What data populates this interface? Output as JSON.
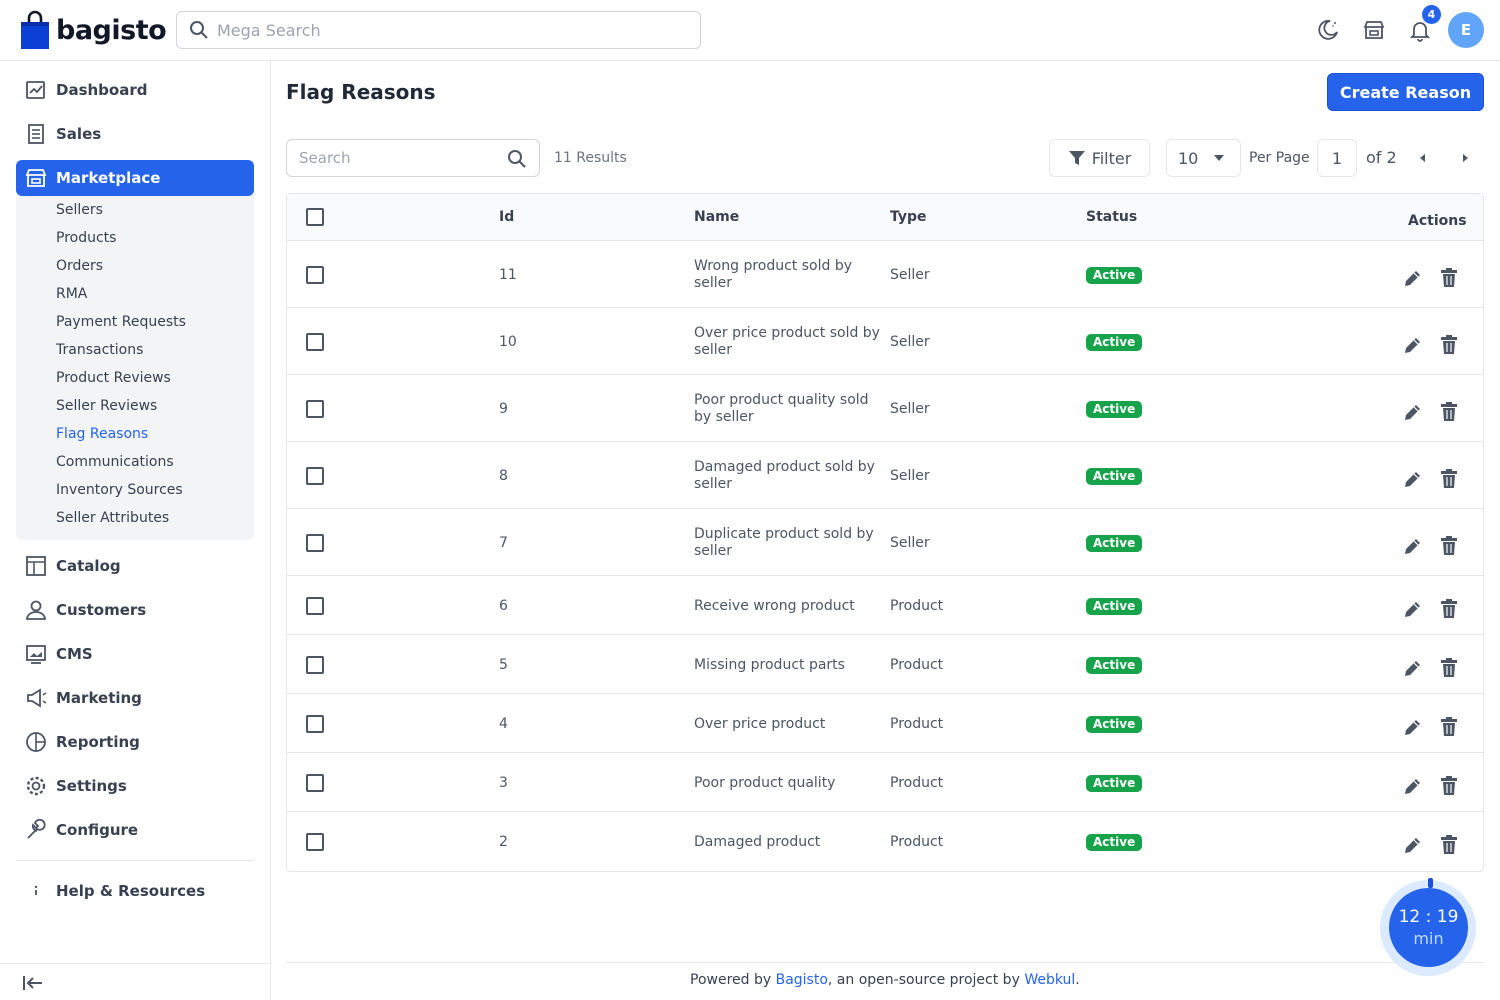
{
  "header": {
    "logo_text": "bagisto",
    "search_placeholder": "Mega Search",
    "notification_count": "4",
    "avatar_initial": "E"
  },
  "sidebar": {
    "items": [
      {
        "label": "Dashboard",
        "icon": "dashboard-icon"
      },
      {
        "label": "Sales",
        "icon": "sales-icon"
      },
      {
        "label": "Marketplace",
        "icon": "store-icon",
        "active": true
      },
      {
        "label": "Catalog",
        "icon": "catalog-icon"
      },
      {
        "label": "Customers",
        "icon": "customer-icon"
      },
      {
        "label": "CMS",
        "icon": "cms-icon"
      },
      {
        "label": "Marketing",
        "icon": "megaphone-icon"
      },
      {
        "label": "Reporting",
        "icon": "reporting-icon"
      },
      {
        "label": "Settings",
        "icon": "gear-icon"
      },
      {
        "label": "Configure",
        "icon": "wrench-icon"
      }
    ],
    "submenu": [
      "Sellers",
      "Products",
      "Orders",
      "RMA",
      "Payment Requests",
      "Transactions",
      "Product Reviews",
      "Seller Reviews",
      "Flag Reasons",
      "Communications",
      "Inventory Sources",
      "Seller Attributes"
    ],
    "active_submenu": "Flag Reasons",
    "help_label": "Help & Resources"
  },
  "main": {
    "title": "Flag Reasons",
    "create_button": "Create Reason",
    "search_placeholder": "Search",
    "results": "11 Results",
    "filter_label": "Filter",
    "per_page_value": "10",
    "per_page_label": "Per Page",
    "current_page": "1",
    "page_of": "of 2"
  },
  "table": {
    "headers": {
      "id": "Id",
      "name": "Name",
      "type": "Type",
      "status": "Status",
      "actions": "Actions"
    },
    "rows": [
      {
        "id": "11",
        "name": "Wrong product sold by seller",
        "type": "Seller",
        "status": "Active"
      },
      {
        "id": "10",
        "name": "Over price product sold by seller",
        "type": "Seller",
        "status": "Active"
      },
      {
        "id": "9",
        "name": "Poor product quality sold by seller",
        "type": "Seller",
        "status": "Active"
      },
      {
        "id": "8",
        "name": "Damaged product sold by seller",
        "type": "Seller",
        "status": "Active"
      },
      {
        "id": "7",
        "name": "Duplicate product sold by seller",
        "type": "Seller",
        "status": "Active"
      },
      {
        "id": "6",
        "name": "Receive wrong product",
        "type": "Product",
        "status": "Active"
      },
      {
        "id": "5",
        "name": "Missing product parts",
        "type": "Product",
        "status": "Active"
      },
      {
        "id": "4",
        "name": "Over price product",
        "type": "Product",
        "status": "Active"
      },
      {
        "id": "3",
        "name": "Poor product quality",
        "type": "Product",
        "status": "Active"
      },
      {
        "id": "2",
        "name": "Damaged product",
        "type": "Product",
        "status": "Active"
      }
    ]
  },
  "footer": {
    "prefix": "Powered by ",
    "link1": "Bagisto",
    "middle": ", an open-source project by ",
    "link2": "Webkul",
    "suffix": "."
  },
  "timer": {
    "time": "12 : 19",
    "unit": "min"
  },
  "colors": {
    "accent": "#2563eb",
    "active_status": "#16a34a"
  }
}
